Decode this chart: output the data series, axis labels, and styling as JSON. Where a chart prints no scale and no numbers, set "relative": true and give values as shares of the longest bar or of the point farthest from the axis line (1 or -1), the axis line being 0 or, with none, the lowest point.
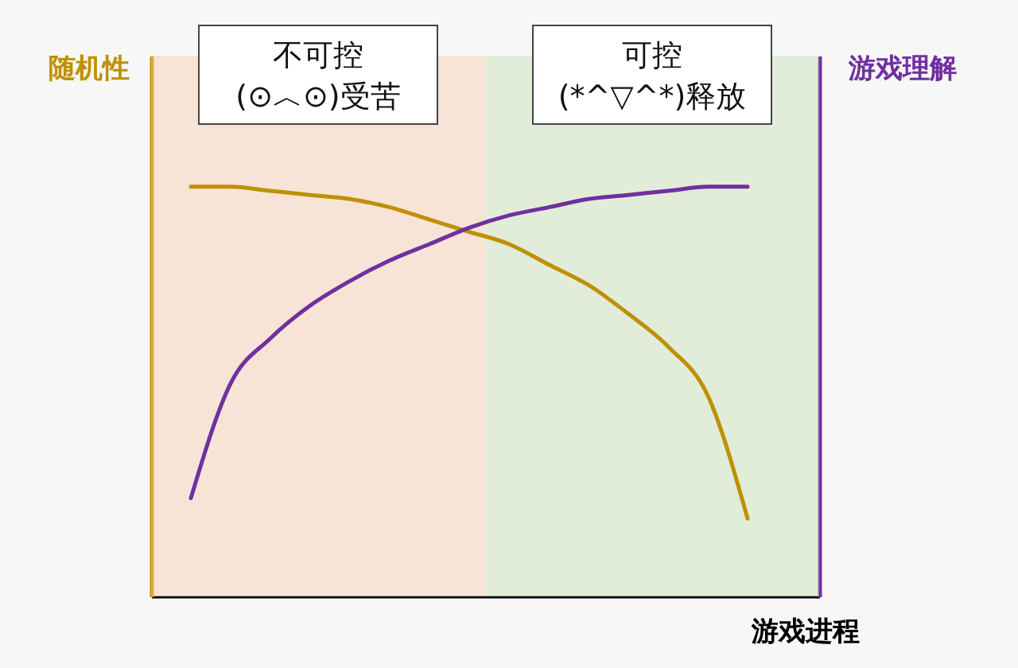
{
  "chart_data": {
    "type": "line",
    "xlabel": "游戏进程",
    "ylabel": "随机性",
    "y2label": "游戏理解",
    "relative": true,
    "categories": [
      null,
      null,
      null,
      null,
      null,
      null,
      null,
      null,
      null,
      null,
      null,
      null,
      null,
      null,
      null
    ],
    "series": [
      {
        "color": "#bf9000",
        "values": [
          1.0,
          1.0,
          0.99,
          0.98,
          0.97,
          0.95,
          0.92,
          0.89,
          0.86,
          0.81,
          0.76,
          0.69,
          0.61,
          0.49,
          0.19
        ]
      },
      {
        "color": "#7030a0",
        "values": [
          0.24,
          0.52,
          0.63,
          0.71,
          0.77,
          0.82,
          0.86,
          0.9,
          0.93,
          0.95,
          0.97,
          0.98,
          0.99,
          1.0,
          1.0
        ]
      }
    ],
    "annotations": [
      "不可控\n(⊙︿⊙)受苦",
      "可控\n(*^▽^*)释放"
    ]
  }
}
